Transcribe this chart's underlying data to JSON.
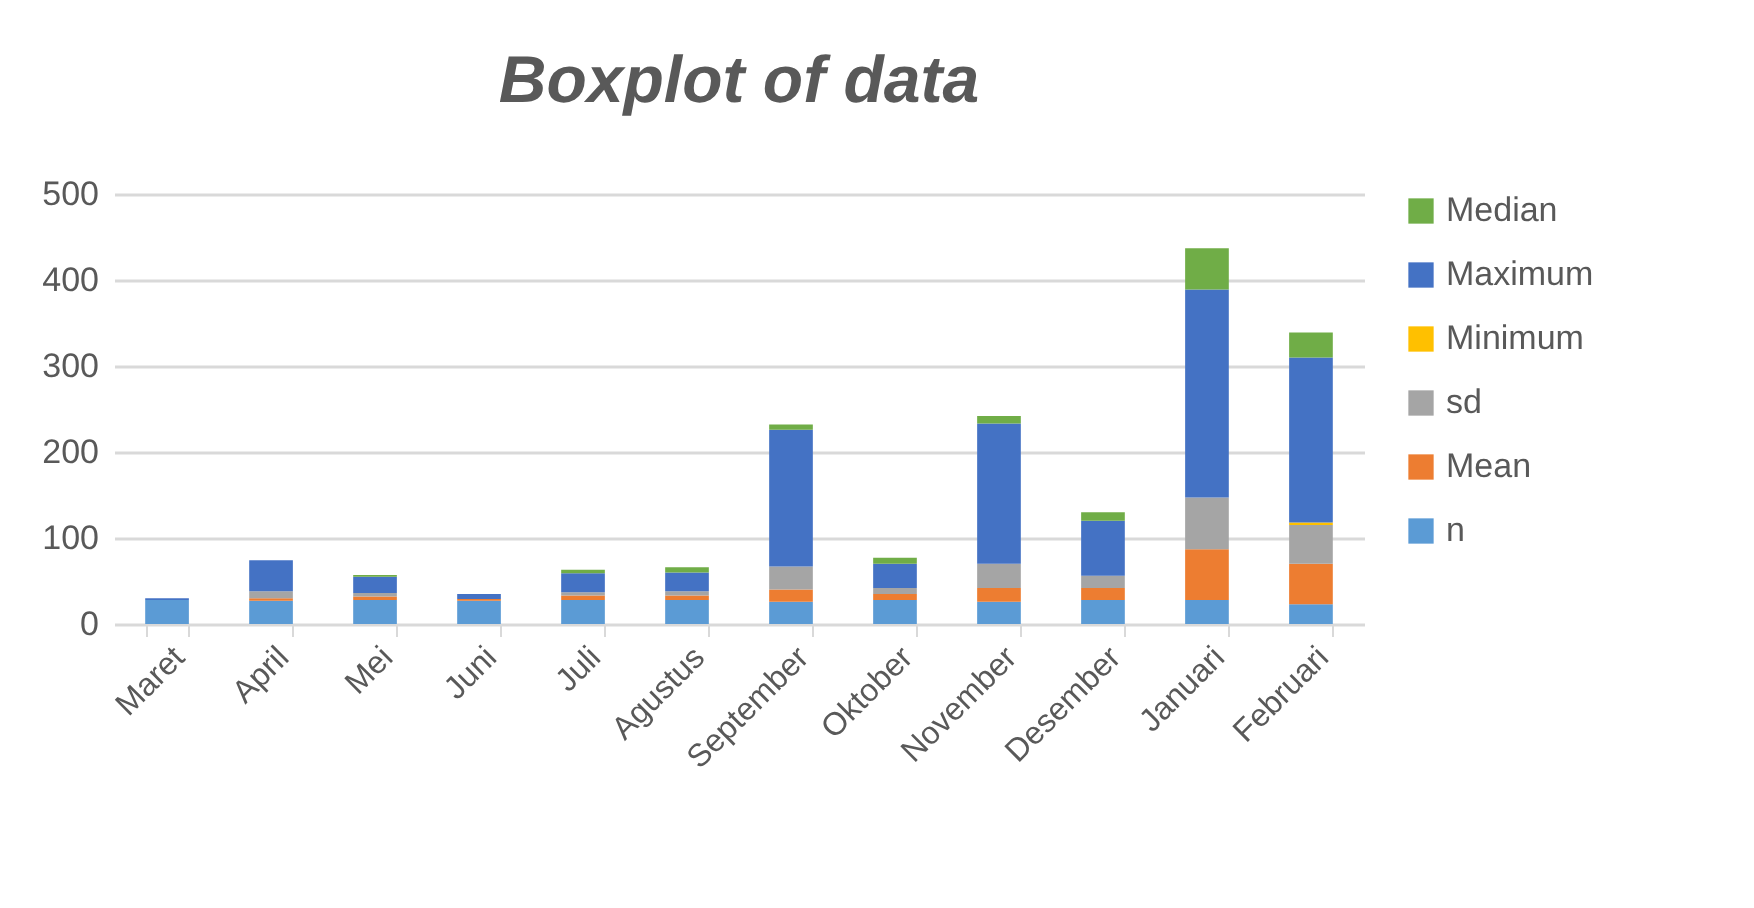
{
  "chart_data": {
    "type": "bar",
    "title": "Boxplot of data",
    "stacked": true,
    "grid": "y",
    "legend": "right",
    "categories": [
      "Maret",
      "April",
      "Mei",
      "Juni",
      "Juli",
      "Agustus",
      "September",
      "Oktober",
      "November",
      "Desember",
      "Januari",
      "Februari"
    ],
    "ylim": [
      0,
      500
    ],
    "yticks": [
      0,
      100,
      200,
      300,
      400,
      500
    ],
    "series": [
      {
        "name": "n",
        "color": "#5b9bd5",
        "values": [
          28,
          27,
          28,
          27,
          28,
          28,
          26,
          28,
          26,
          28,
          28,
          23
        ]
      },
      {
        "name": "Mean",
        "color": "#ed7d31",
        "values": [
          0,
          3,
          4,
          2,
          5,
          5,
          14,
          7,
          16,
          14,
          59,
          47
        ]
      },
      {
        "name": "sd",
        "color": "#a5a5a5",
        "values": [
          0,
          8,
          4,
          0,
          4,
          5,
          27,
          7,
          28,
          14,
          60,
          45
        ]
      },
      {
        "name": "Minimum",
        "color": "#ffc000",
        "values": [
          0,
          0,
          0,
          0,
          0,
          0,
          0,
          0,
          0,
          0,
          0,
          3
        ]
      },
      {
        "name": "Maximum",
        "color": "#4472c4",
        "values": [
          2,
          36,
          19,
          6,
          22,
          22,
          159,
          28,
          163,
          64,
          242,
          192
        ]
      },
      {
        "name": "Median",
        "color": "#70ad47",
        "values": [
          0,
          0,
          2,
          0,
          4,
          6,
          6,
          7,
          9,
          10,
          48,
          29
        ]
      }
    ]
  }
}
